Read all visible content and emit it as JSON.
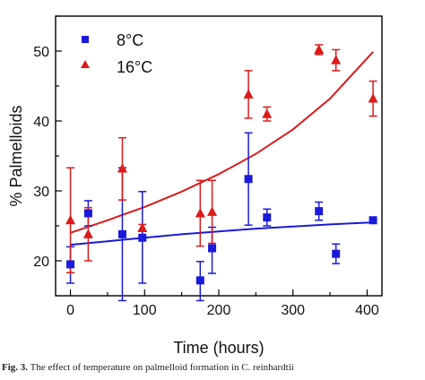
{
  "caption": {
    "label": "Fig. 3.",
    "text": "The effect of temperature on palmelloid formation in C. reinhardtii"
  },
  "chart_data": {
    "type": "scatter",
    "xlabel": "Time (hours)",
    "ylabel": "% Palmelloids",
    "xlim": [
      -20,
      420
    ],
    "ylim": [
      15,
      55
    ],
    "xticks": [
      0,
      100,
      200,
      300,
      400
    ],
    "yticks": [
      20,
      30,
      40,
      50
    ],
    "x_minor_step": 50,
    "y_minor_step": 5,
    "grid": false,
    "legend_position": "top-left",
    "series": [
      {
        "name": "8°C",
        "marker": "square",
        "color": "#1a1adb",
        "points": [
          {
            "x": 0,
            "y": 19.5,
            "err_low": 16.8,
            "err_high": 22.0
          },
          {
            "x": 24,
            "y": 26.8,
            "err_low": 25.0,
            "err_high": 28.6
          },
          {
            "x": 70,
            "y": 23.8,
            "err_low": 14.3,
            "err_high": 33.3
          },
          {
            "x": 97,
            "y": 23.3,
            "err_low": 16.8,
            "err_high": 29.9
          },
          {
            "x": 175,
            "y": 17.2,
            "err_low": 14.3,
            "err_high": 19.9
          },
          {
            "x": 191,
            "y": 21.8,
            "err_low": 18.2,
            "err_high": 24.8
          },
          {
            "x": 240,
            "y": 31.7,
            "err_low": 25.1,
            "err_high": 38.3
          },
          {
            "x": 265,
            "y": 26.2,
            "err_low": 25.0,
            "err_high": 27.4
          },
          {
            "x": 335,
            "y": 27.1,
            "err_low": 25.8,
            "err_high": 28.4
          },
          {
            "x": 358,
            "y": 21.0,
            "err_low": 19.6,
            "err_high": 22.4
          },
          {
            "x": 408,
            "y": 25.8,
            "err_low": 25.8,
            "err_high": 25.8
          }
        ],
        "fit": {
          "x": [
            0,
            50,
            100,
            150,
            200,
            250,
            300,
            350,
            408
          ],
          "y": [
            22.3,
            22.8,
            23.3,
            23.8,
            24.2,
            24.6,
            24.9,
            25.2,
            25.5
          ]
        }
      },
      {
        "name": "16°C",
        "marker": "triangle",
        "color": "#dd1a1a",
        "points": [
          {
            "x": 0,
            "y": 25.8,
            "err_low": 18.3,
            "err_high": 33.3
          },
          {
            "x": 24,
            "y": 23.8,
            "err_low": 20.0,
            "err_high": 27.6
          },
          {
            "x": 70,
            "y": 33.2,
            "err_low": 28.7,
            "err_high": 37.6
          },
          {
            "x": 97,
            "y": 24.7,
            "err_low": 24.2,
            "err_high": 25.2
          },
          {
            "x": 175,
            "y": 26.8,
            "err_low": 22.1,
            "err_high": 31.5
          },
          {
            "x": 191,
            "y": 27.0,
            "err_low": 22.5,
            "err_high": 31.5
          },
          {
            "x": 240,
            "y": 43.8,
            "err_low": 40.4,
            "err_high": 47.2
          },
          {
            "x": 265,
            "y": 41.0,
            "err_low": 40.0,
            "err_high": 42.0
          },
          {
            "x": 335,
            "y": 50.2,
            "err_low": 49.5,
            "err_high": 50.9
          },
          {
            "x": 358,
            "y": 48.7,
            "err_low": 47.2,
            "err_high": 50.2
          },
          {
            "x": 408,
            "y": 43.2,
            "err_low": 40.7,
            "err_high": 45.7
          }
        ],
        "fit": {
          "x": [
            0,
            50,
            100,
            150,
            200,
            250,
            300,
            350,
            408
          ],
          "y": [
            24.0,
            25.8,
            27.7,
            29.9,
            32.4,
            35.3,
            38.8,
            43.2,
            49.9
          ]
        }
      }
    ]
  }
}
